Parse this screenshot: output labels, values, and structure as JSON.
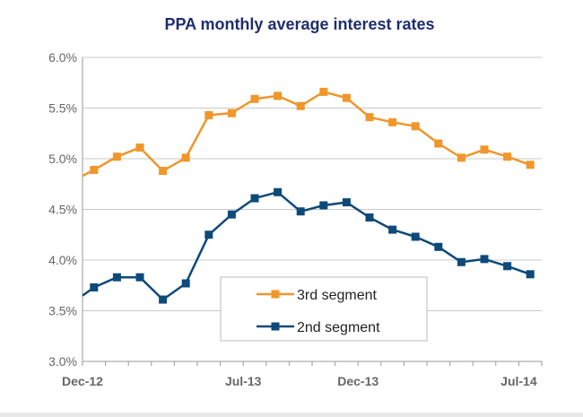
{
  "chart_data": {
    "type": "line",
    "title": "PPA monthly average interest rates",
    "xlabel": "",
    "ylabel": "",
    "ylim": [
      3.0,
      6.0
    ],
    "yticks": [
      "3.0%",
      "3.5%",
      "4.0%",
      "4.5%",
      "5.0%",
      "5.5%",
      "6.0%"
    ],
    "ytick_values": [
      3.0,
      3.5,
      4.0,
      4.5,
      5.0,
      5.5,
      6.0
    ],
    "xlim": [
      0,
      20
    ],
    "x_tick_labels": [
      {
        "x": 0,
        "label": "Dec-12"
      },
      {
        "x": 7,
        "label": "Jul-13"
      },
      {
        "x": 12,
        "label": "Dec-13"
      },
      {
        "x": 19,
        "label": "Jul-14"
      }
    ],
    "grid": true,
    "legend_position": "bottom-center",
    "series": [
      {
        "name": "3rd segment",
        "color": "#F0962A",
        "start_value": 4.83,
        "x": [
          0.5,
          1.5,
          2.5,
          3.5,
          4.5,
          5.5,
          6.5,
          7.5,
          8.5,
          9.5,
          10.5,
          11.5,
          12.5,
          13.5,
          14.5,
          15.5,
          16.5,
          17.5,
          18.5,
          19.5
        ],
        "values": [
          4.89,
          5.02,
          5.11,
          4.88,
          5.01,
          5.43,
          5.45,
          5.59,
          5.62,
          5.52,
          5.66,
          5.6,
          5.41,
          5.36,
          5.32,
          5.15,
          5.01,
          5.09,
          5.02,
          4.94
        ]
      },
      {
        "name": "2nd segment",
        "color": "#0D4A7A",
        "start_value": 3.65,
        "x": [
          0.5,
          1.5,
          2.5,
          3.5,
          4.5,
          5.5,
          6.5,
          7.5,
          8.5,
          9.5,
          10.5,
          11.5,
          12.5,
          13.5,
          14.5,
          15.5,
          16.5,
          17.5,
          18.5,
          19.5
        ],
        "values": [
          3.73,
          3.83,
          3.83,
          3.61,
          3.77,
          4.25,
          4.45,
          4.61,
          4.67,
          4.48,
          4.54,
          4.57,
          4.42,
          4.3,
          4.23,
          4.13,
          3.98,
          4.01,
          3.94,
          3.86
        ]
      }
    ]
  },
  "colors": {
    "title": "#1F2E6E",
    "axis_text": "#666666",
    "grid": "#C9C9C9",
    "axis": "#9A9A9A"
  }
}
